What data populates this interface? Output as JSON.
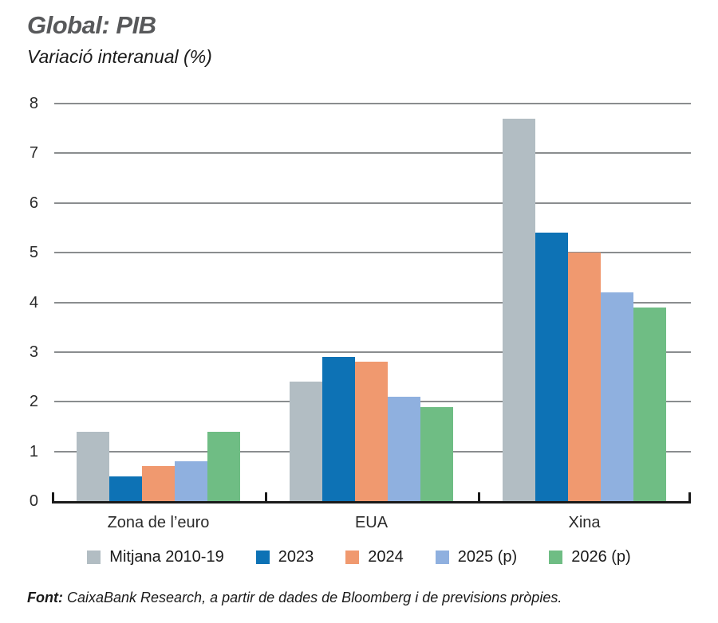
{
  "header": {
    "title": "Global: PIB",
    "subtitle": "Variació interanual (%)"
  },
  "chart_data": {
    "type": "bar",
    "title": "Global: PIB",
    "subtitle": "Variació interanual (%)",
    "xlabel": "",
    "ylabel": "Variació interanual (%)",
    "ylim": [
      0,
      8
    ],
    "yticks": [
      0,
      1,
      2,
      3,
      4,
      5,
      6,
      7,
      8
    ],
    "grid": true,
    "gridline_color": "#8a8d8f",
    "axis_color": "#1a1a1a",
    "legend_position": "bottom",
    "categories": [
      "Zona de l’euro",
      "EUA",
      "Xina"
    ],
    "series": [
      {
        "name": "Mitjana 2010-19",
        "color": "#b2bdc3",
        "values": [
          1.4,
          2.4,
          7.7
        ]
      },
      {
        "name": "2023",
        "color": "#0d72b5",
        "values": [
          0.5,
          2.9,
          5.4
        ]
      },
      {
        "name": "2024",
        "color": "#f0996f",
        "values": [
          0.7,
          2.8,
          5.0
        ]
      },
      {
        "name": "2025 (p)",
        "color": "#8fb0df",
        "values": [
          0.8,
          2.1,
          4.2
        ]
      },
      {
        "name": "2026 (p)",
        "color": "#6fbd84",
        "values": [
          1.4,
          1.9,
          3.9
        ]
      }
    ]
  },
  "footer": {
    "source_label": "Font:",
    "source_text": "CaixaBank Research, a partir de dades de Bloomberg i de previsions pròpies."
  }
}
